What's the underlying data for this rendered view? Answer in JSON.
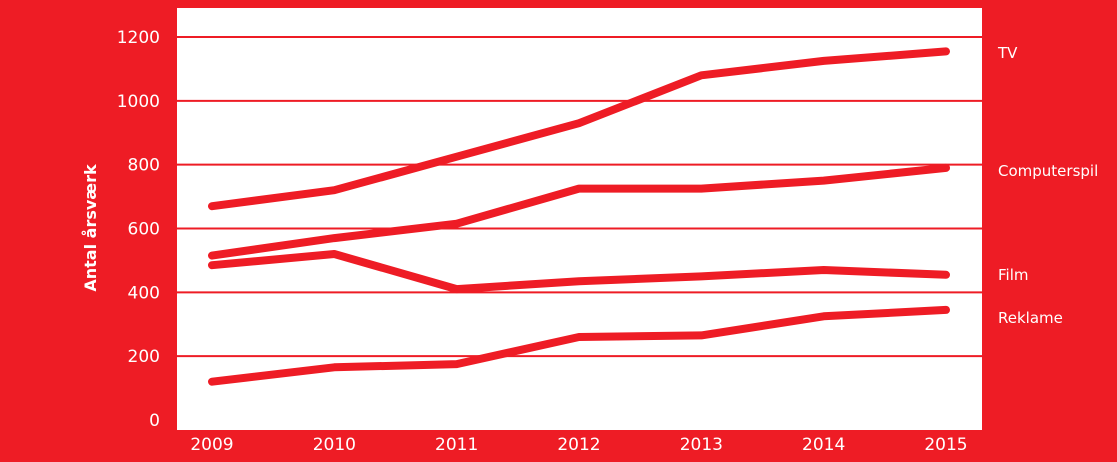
{
  "colors": {
    "background": "#ee1c25",
    "plot_area": "#ffffff",
    "line": "#ee1c25",
    "text": "#ffffff"
  },
  "chart_data": {
    "type": "line",
    "title": "",
    "xlabel": "",
    "ylabel": "Antal årsværk",
    "x": [
      2009,
      2010,
      2011,
      2012,
      2013,
      2014,
      2015
    ],
    "x_tick_labels": [
      "2009",
      "2010",
      "2011",
      "2012",
      "2013",
      "2014",
      "2015"
    ],
    "ylim": [
      0,
      1200
    ],
    "y_ticks": [
      0,
      200,
      400,
      600,
      800,
      1000,
      1200
    ],
    "y_tick_labels": [
      "0",
      "200",
      "400",
      "600",
      "800",
      "1000",
      "1200"
    ],
    "grid": "horizontal",
    "legend": "labels at right end of each line",
    "series": [
      {
        "name": "TV",
        "values": [
          670,
          720,
          825,
          930,
          1080,
          1125,
          1155
        ]
      },
      {
        "name": "Computerspil",
        "values": [
          515,
          570,
          615,
          725,
          725,
          750,
          790
        ]
      },
      {
        "name": "Film",
        "values": [
          485,
          520,
          410,
          435,
          450,
          470,
          455
        ]
      },
      {
        "name": "Reklame",
        "values": [
          120,
          165,
          175,
          260,
          265,
          325,
          345
        ]
      }
    ]
  }
}
